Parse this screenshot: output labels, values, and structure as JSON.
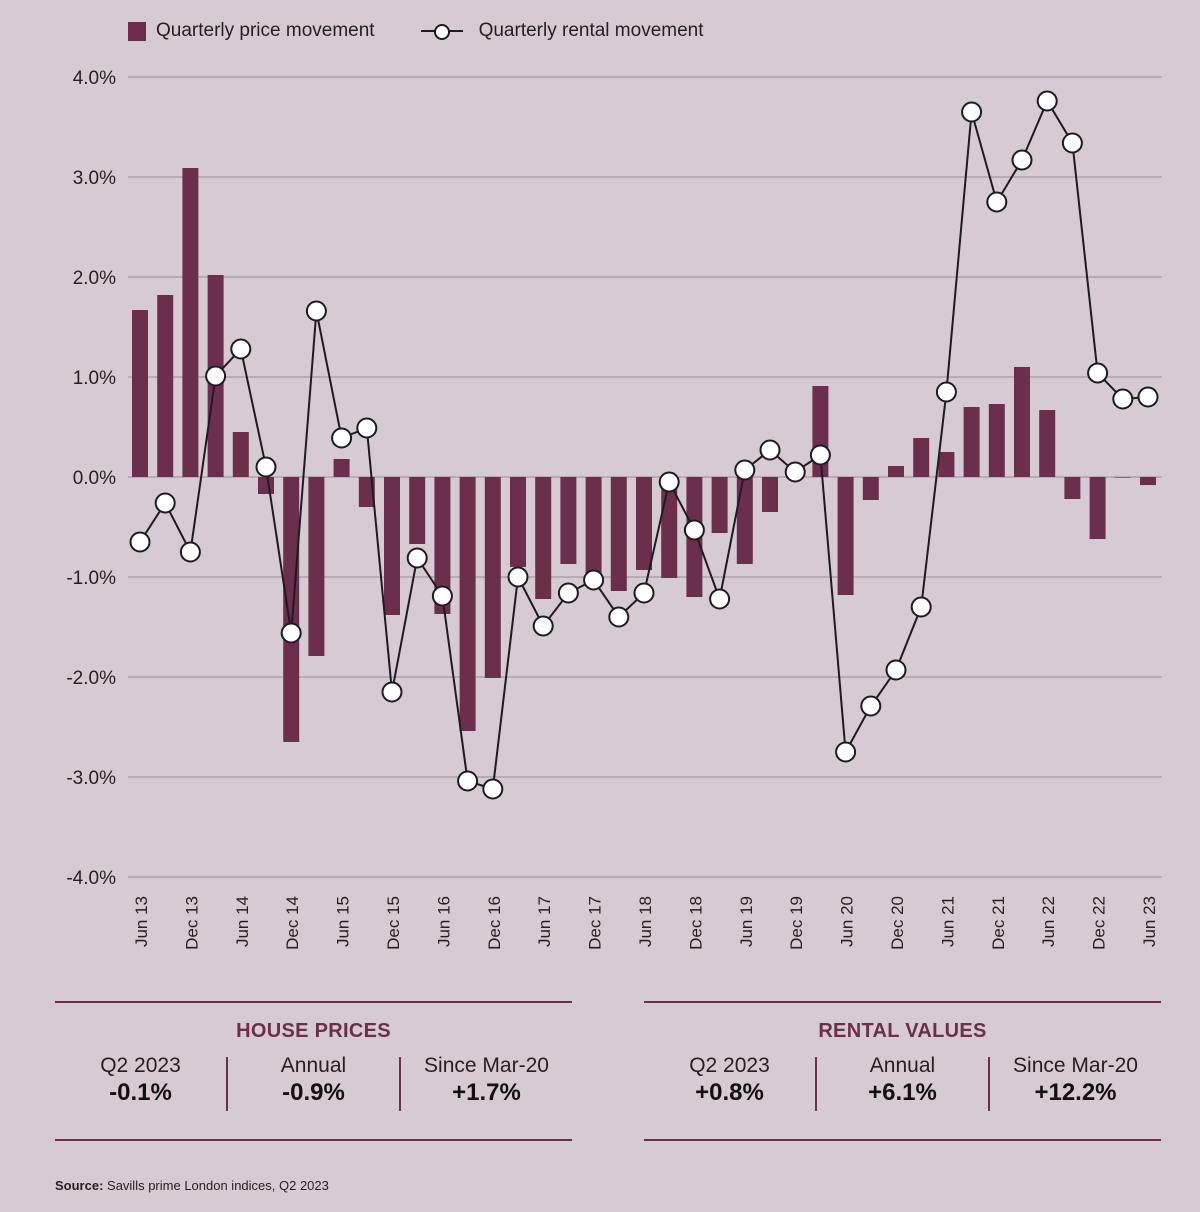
{
  "chart_data": {
    "type": "bar+line",
    "title": "",
    "xlabel": "",
    "ylabel": "",
    "ylim": [
      -4.0,
      4.0
    ],
    "yticks": [
      "4.0%",
      "3.0%",
      "2.0%",
      "1.0%",
      "0.0%",
      "-1.0%",
      "-2.0%",
      "-3.0%",
      "-4.0%"
    ],
    "ytick_values": [
      4,
      3,
      2,
      1,
      0,
      -1,
      -2,
      -3,
      -4
    ],
    "grid": true,
    "legend_position": "top-left",
    "quarters": [
      "Jun 13",
      "Sep 13",
      "Dec 13",
      "Mar 14",
      "Jun 14",
      "Sep 14",
      "Dec 14",
      "Mar 15",
      "Jun 15",
      "Sep 15",
      "Dec 15",
      "Mar 16",
      "Jun 16",
      "Sep 16",
      "Dec 16",
      "Mar 17",
      "Jun 17",
      "Sep 17",
      "Dec 17",
      "Mar 18",
      "Jun 18",
      "Sep 18",
      "Dec 18",
      "Mar 19",
      "Jun 19",
      "Sep 19",
      "Dec 19",
      "Mar 20",
      "Jun 20",
      "Sep 20",
      "Dec 20",
      "Mar 21",
      "Jun 21",
      "Sep 21",
      "Dec 21",
      "Mar 22",
      "Jun 22",
      "Sep 22",
      "Dec 22",
      "Mar 23",
      "Jun 23"
    ],
    "xtick_labels": [
      "Jun 13",
      "Dec 13",
      "Jun 14",
      "Dec 14",
      "Jun 15",
      "Dec 15",
      "Jun 16",
      "Dec 16",
      "Jun 17",
      "Dec 17",
      "Jun 18",
      "Dec 18",
      "Jun 19",
      "Dec 19",
      "Jun 20",
      "Dec 20",
      "Jun 21",
      "Dec 21",
      "Jun 22",
      "Dec 22",
      "Jun 23"
    ],
    "series": [
      {
        "name": "Quarterly price movement",
        "type": "bar",
        "color": "#6b2f4c",
        "values": [
          1.67,
          1.82,
          3.09,
          2.02,
          0.45,
          -0.17,
          -2.65,
          -1.79,
          0.18,
          -0.3,
          -1.38,
          -0.67,
          -1.37,
          -2.54,
          -2.01,
          -0.9,
          -1.22,
          -0.87,
          -0.96,
          -1.14,
          -0.93,
          -1.01,
          -1.2,
          -0.56,
          -0.87,
          -0.35,
          0.0,
          0.91,
          -1.18,
          -0.23,
          0.11,
          0.39,
          0.25,
          0.7,
          0.73,
          1.1,
          0.67,
          -0.22,
          -0.62,
          0.0,
          -0.08
        ]
      },
      {
        "name": "Quarterly rental movement",
        "type": "line",
        "color": "#1e1a22",
        "marker_fill": "#ffffff",
        "values": [
          -0.65,
          -0.26,
          -0.75,
          1.01,
          1.28,
          0.1,
          -1.56,
          1.66,
          0.39,
          0.49,
          -2.15,
          -0.81,
          -1.19,
          -3.04,
          -3.12,
          -1.0,
          -1.49,
          -1.16,
          -1.03,
          -1.4,
          -1.16,
          -0.05,
          -0.53,
          -1.22,
          0.07,
          0.27,
          0.05,
          0.22,
          -2.75,
          -2.29,
          -1.93,
          -1.3,
          0.85,
          3.65,
          2.75,
          3.17,
          3.76,
          3.34,
          1.04,
          0.78,
          0.8
        ]
      }
    ]
  },
  "legend": {
    "bar_label": "Quarterly price movement",
    "line_label": "Quarterly rental movement"
  },
  "house_prices": {
    "title": "HOUSE PRICES",
    "stats": [
      {
        "label": "Q2 2023",
        "value": "-0.1%"
      },
      {
        "label": "Annual",
        "value": "-0.9%"
      },
      {
        "label": "Since Mar-20",
        "value": "+1.7%"
      }
    ]
  },
  "rental_values": {
    "title": "RENTAL VALUES",
    "stats": [
      {
        "label": "Q2 2023",
        "value": "+0.8%"
      },
      {
        "label": "Annual",
        "value": "+6.1%"
      },
      {
        "label": "Since Mar-20",
        "value": "+12.2%"
      }
    ]
  },
  "source": {
    "prefix": "Source:",
    "text": " Savills prime London indices, Q2 2023"
  },
  "colors": {
    "background": "#d7cbd3",
    "accent": "#6b2f4c",
    "grid": "#a69aa2"
  }
}
